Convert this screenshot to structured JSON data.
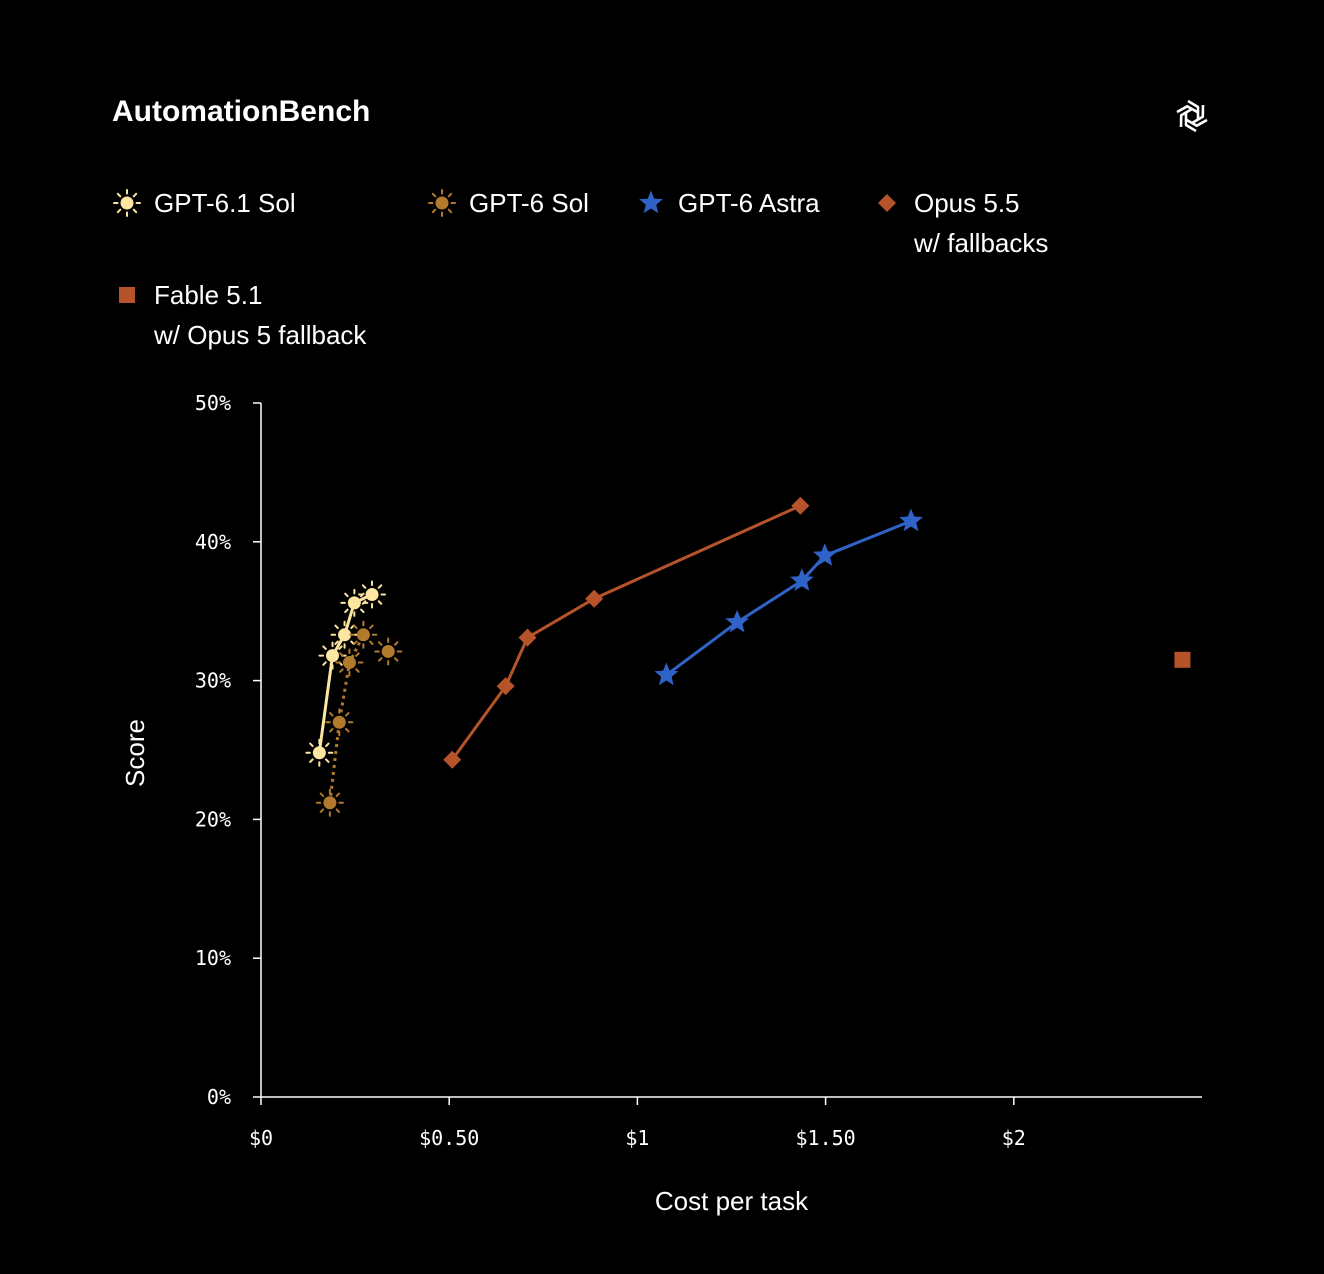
{
  "header": {
    "title": "AutomationBench",
    "logo_icon": "openai-logo-icon"
  },
  "legend": [
    {
      "key": "gpt61",
      "label": "GPT-6.1 Sol",
      "marker": "sun",
      "color": "#fde6a0"
    },
    {
      "key": "gpt6",
      "label": "GPT-6 Sol",
      "marker": "sun",
      "color": "#b27a2c"
    },
    {
      "key": "astra",
      "label": "GPT-6 Astra",
      "marker": "star",
      "color": "#2f63c8"
    },
    {
      "key": "opus",
      "label": "Opus 5.5\nw/ fallbacks",
      "marker": "diamond",
      "color": "#b6532a"
    },
    {
      "key": "fable",
      "label": "Fable 5.1\nw/ Opus 5 fallback",
      "marker": "square",
      "color": "#b6532a"
    }
  ],
  "chart_data": {
    "type": "line",
    "xlabel": "Cost per task",
    "ylabel": "Score",
    "xlim": [
      0,
      2.5
    ],
    "ylim": [
      0,
      50
    ],
    "x_ticks": [
      {
        "v": 0,
        "label": "$0"
      },
      {
        "v": 0.5,
        "label": "$0.50"
      },
      {
        "v": 1,
        "label": "$1"
      },
      {
        "v": 1.5,
        "label": "$1.50"
      },
      {
        "v": 2,
        "label": "$2"
      }
    ],
    "y_ticks": [
      {
        "v": 0,
        "label": "0%"
      },
      {
        "v": 10,
        "label": "10%"
      },
      {
        "v": 20,
        "label": "20%"
      },
      {
        "v": 30,
        "label": "30%"
      },
      {
        "v": 40,
        "label": "40%"
      },
      {
        "v": 50,
        "label": "50%"
      }
    ],
    "grid": false,
    "series": [
      {
        "name": "GPT-6.1 Sol",
        "key": "gpt61",
        "marker": "sun",
        "color": "#fde6a0",
        "line": "solid",
        "points": [
          [
            0.155,
            24.8
          ],
          [
            0.19,
            31.8
          ],
          [
            0.222,
            33.3
          ],
          [
            0.248,
            35.6
          ],
          [
            0.295,
            36.2
          ]
        ]
      },
      {
        "name": "GPT-6 Sol",
        "key": "gpt6",
        "marker": "sun",
        "color": "#b27a2c",
        "line": "dotted",
        "points": [
          [
            0.183,
            21.2
          ],
          [
            0.208,
            27.0
          ],
          [
            0.235,
            31.3
          ],
          [
            0.272,
            33.3
          ]
        ],
        "extra_points": [
          [
            0.338,
            32.1
          ]
        ]
      },
      {
        "name": "GPT-6 Astra",
        "key": "astra",
        "marker": "star",
        "color": "#2f63c8",
        "line": "solid",
        "points": [
          [
            1.077,
            30.4
          ],
          [
            1.265,
            34.2
          ],
          [
            1.437,
            37.2
          ],
          [
            1.498,
            39.0
          ],
          [
            1.727,
            41.5
          ]
        ]
      },
      {
        "name": "Opus 5.5 w/ fallbacks",
        "key": "opus",
        "marker": "diamond",
        "color": "#b6532a",
        "line": "solid",
        "points": [
          [
            0.508,
            24.3
          ],
          [
            0.65,
            29.6
          ],
          [
            0.708,
            33.1
          ],
          [
            0.885,
            35.9
          ],
          [
            1.433,
            42.6
          ]
        ]
      },
      {
        "name": "Fable 5.1 w/ Opus 5 fallback",
        "key": "fable",
        "marker": "square",
        "color": "#b6532a",
        "line": "none",
        "points": [
          [
            2.448,
            31.5
          ]
        ]
      }
    ]
  }
}
